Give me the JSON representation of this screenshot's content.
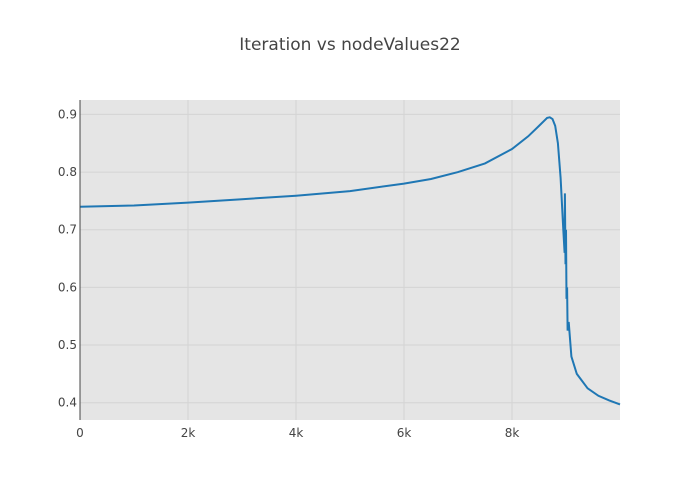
{
  "chart_data": {
    "type": "line",
    "title": "Iteration vs nodeValues22",
    "xlabel": "",
    "ylabel": "",
    "xlim": [
      0,
      10000
    ],
    "ylim": [
      0.37,
      0.925
    ],
    "grid": true,
    "line_color": "#1f77b4",
    "plot_bg": "#e5e5e5",
    "x_ticks": [
      0,
      2000,
      4000,
      6000,
      8000
    ],
    "x_tick_labels": [
      "0",
      "2k",
      "4k",
      "6k",
      "8k"
    ],
    "y_ticks": [
      0.4,
      0.5,
      0.6,
      0.7,
      0.8,
      0.9
    ],
    "y_tick_labels": [
      "0.4",
      "0.5",
      "0.6",
      "0.7",
      "0.8",
      "0.9"
    ],
    "x": [
      0,
      1000,
      2000,
      3000,
      4000,
      5000,
      6000,
      6500,
      7000,
      7500,
      8000,
      8300,
      8500,
      8650,
      8700,
      8750,
      8800,
      8850,
      8900,
      8950,
      8975,
      8980,
      8990,
      9000,
      9010,
      9020,
      9030,
      9050,
      9100,
      9200,
      9400,
      9600,
      9800,
      10000
    ],
    "y": [
      0.74,
      0.742,
      0.747,
      0.753,
      0.759,
      0.767,
      0.78,
      0.788,
      0.8,
      0.815,
      0.84,
      0.862,
      0.88,
      0.894,
      0.895,
      0.892,
      0.88,
      0.85,
      0.79,
      0.7,
      0.66,
      0.763,
      0.64,
      0.7,
      0.58,
      0.6,
      0.525,
      0.54,
      0.48,
      0.45,
      0.425,
      0.412,
      0.404,
      0.397
    ]
  }
}
